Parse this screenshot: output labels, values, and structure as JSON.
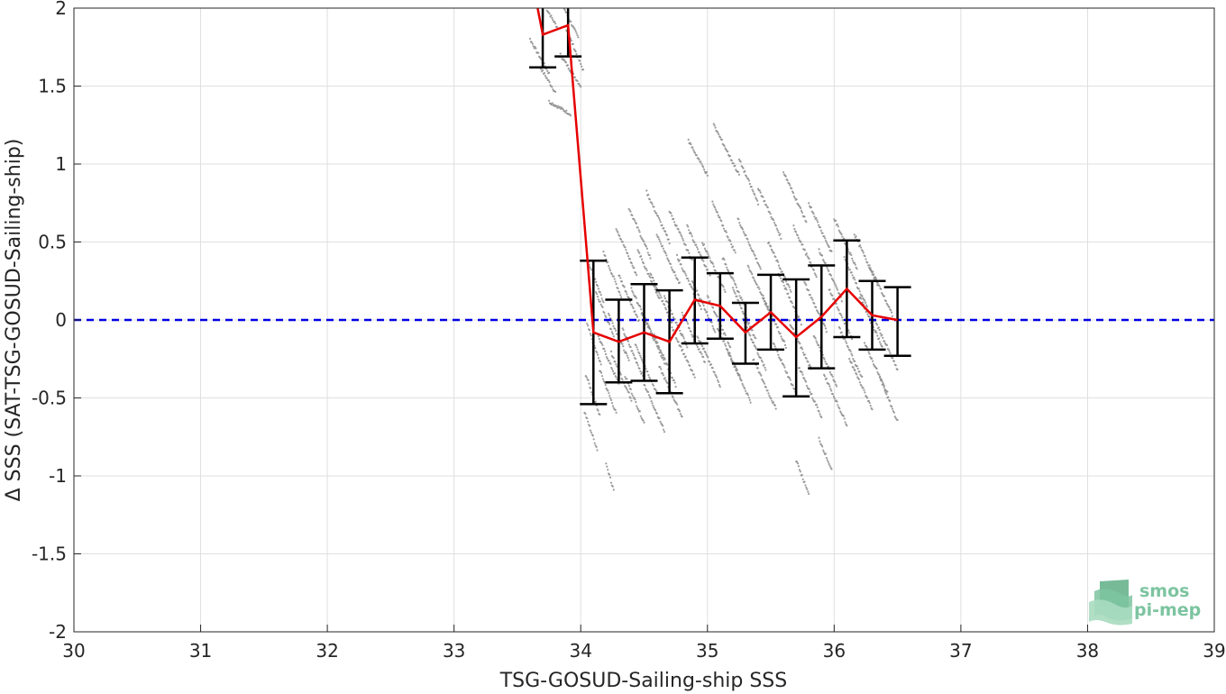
{
  "chart_data": {
    "type": "scatter",
    "xlabel": "TSG-GOSUD-Sailing-ship SSS",
    "ylabel": "Δ SSS (SAT-TSG-GOSUD-Sailing-ship)",
    "xlim": [
      30,
      39
    ],
    "ylim": [
      -2,
      2
    ],
    "xticks": [
      30,
      31,
      32,
      33,
      34,
      35,
      36,
      37,
      38,
      39
    ],
    "yticks": [
      -2,
      -1.5,
      -1,
      -0.5,
      0,
      0.5,
      1,
      1.5,
      2
    ],
    "grid": true,
    "reference_line": {
      "y": 0,
      "color": "#0000e6",
      "style": "dashed"
    },
    "mean_line": {
      "color": "#e60000",
      "x": [
        33.6,
        33.7,
        33.9,
        34.1,
        34.3,
        34.5,
        34.7,
        34.9,
        35.1,
        35.3,
        35.5,
        35.7,
        35.9,
        36.1,
        36.3,
        36.5
      ],
      "y": [
        2.25,
        1.83,
        1.89,
        -0.08,
        -0.14,
        -0.08,
        -0.14,
        0.13,
        0.09,
        -0.08,
        0.05,
        -0.11,
        0.02,
        0.2,
        0.03,
        0.0
      ]
    },
    "error_bars": {
      "color": "#000000",
      "x": [
        33.7,
        33.9,
        34.1,
        34.3,
        34.5,
        34.7,
        34.9,
        35.1,
        35.3,
        35.5,
        35.7,
        35.9,
        36.1,
        36.3,
        36.5
      ],
      "lower": [
        1.62,
        1.69,
        -0.54,
        -0.4,
        -0.39,
        -0.47,
        -0.15,
        -0.12,
        -0.28,
        -0.19,
        -0.49,
        -0.31,
        -0.11,
        -0.19,
        -0.23
      ],
      "upper": [
        2.05,
        2.08,
        0.38,
        0.13,
        0.23,
        0.19,
        0.4,
        0.3,
        0.11,
        0.29,
        0.26,
        0.35,
        0.51,
        0.25,
        0.21
      ]
    },
    "scatter_color": "#8c8c8c",
    "scatter_segments": [
      {
        "x0": 33.72,
        "x1": 33.82,
        "y0": 2.0,
        "dy": 0.01
      },
      {
        "x0": 33.6,
        "x1": 33.75,
        "y0": 1.75,
        "dy": 0.05
      },
      {
        "x0": 33.68,
        "x1": 33.8,
        "y0": 1.6,
        "dy": 0.02
      },
      {
        "x0": 33.85,
        "x1": 33.98,
        "y0": 1.98,
        "dy": 0.05
      },
      {
        "x0": 33.88,
        "x1": 34.02,
        "y0": 1.8,
        "dy": 0.08
      },
      {
        "x0": 33.84,
        "x1": 34.0,
        "y0": 1.66,
        "dy": 0.04
      },
      {
        "x0": 33.75,
        "x1": 33.92,
        "y0": 1.42,
        "dy": -0.02
      },
      {
        "x0": 34.06,
        "x1": 34.18,
        "y0": 0.3,
        "dy": 0.07
      },
      {
        "x0": 34.05,
        "x1": 34.16,
        "y0": -0.1,
        "dy": 0.07
      },
      {
        "x0": 34.04,
        "x1": 34.15,
        "y0": -0.42,
        "dy": 0.07
      },
      {
        "x0": 34.03,
        "x1": 34.13,
        "y0": -0.65,
        "dy": 0.06
      },
      {
        "x0": 34.12,
        "x1": 34.26,
        "y0": 0.1,
        "dy": 0.08
      },
      {
        "x0": 34.14,
        "x1": 34.3,
        "y0": -0.2,
        "dy": 0.09
      },
      {
        "x0": 34.15,
        "x1": 34.28,
        "y0": -0.4,
        "dy": 0.08
      },
      {
        "x0": 34.18,
        "x1": 34.32,
        "y0": 0.35,
        "dy": 0.08
      },
      {
        "x0": 34.22,
        "x1": 34.38,
        "y0": -0.05,
        "dy": 0.09
      },
      {
        "x0": 34.24,
        "x1": 34.4,
        "y0": -0.3,
        "dy": 0.09
      },
      {
        "x0": 34.28,
        "x1": 34.44,
        "y0": 0.5,
        "dy": 0.09
      },
      {
        "x0": 34.3,
        "x1": 34.46,
        "y0": 0.2,
        "dy": 0.09
      },
      {
        "x0": 34.33,
        "x1": 34.49,
        "y0": -0.15,
        "dy": 0.09
      },
      {
        "x0": 34.35,
        "x1": 34.5,
        "y0": -0.45,
        "dy": 0.09
      },
      {
        "x0": 34.38,
        "x1": 34.55,
        "y0": 0.62,
        "dy": 0.1
      },
      {
        "x0": 34.4,
        "x1": 34.58,
        "y0": 0.1,
        "dy": 0.1
      },
      {
        "x0": 34.43,
        "x1": 34.6,
        "y0": -0.25,
        "dy": 0.1
      },
      {
        "x0": 34.45,
        "x1": 34.62,
        "y0": 0.35,
        "dy": 0.1
      },
      {
        "x0": 34.48,
        "x1": 34.66,
        "y0": -0.05,
        "dy": 0.1
      },
      {
        "x0": 34.5,
        "x1": 34.66,
        "y0": -0.5,
        "dy": 0.09
      },
      {
        "x0": 34.52,
        "x1": 34.7,
        "y0": 0.72,
        "dy": 0.1
      },
      {
        "x0": 34.55,
        "x1": 34.72,
        "y0": 0.2,
        "dy": 0.1
      },
      {
        "x0": 34.58,
        "x1": 34.75,
        "y0": -0.2,
        "dy": 0.1
      },
      {
        "x0": 34.6,
        "x1": 34.78,
        "y0": 0.45,
        "dy": 0.1
      },
      {
        "x0": 34.62,
        "x1": 34.8,
        "y0": -0.4,
        "dy": 0.1
      },
      {
        "x0": 34.66,
        "x1": 34.84,
        "y0": 0.05,
        "dy": 0.1
      },
      {
        "x0": 34.7,
        "x1": 34.88,
        "y0": 0.6,
        "dy": 0.1
      },
      {
        "x0": 34.72,
        "x1": 34.9,
        "y0": -0.15,
        "dy": 0.1
      },
      {
        "x0": 34.76,
        "x1": 34.95,
        "y0": 0.3,
        "dy": 0.11
      },
      {
        "x0": 34.8,
        "x1": 34.98,
        "y0": -0.05,
        "dy": 0.1
      },
      {
        "x0": 34.84,
        "x1": 35.02,
        "y0": 0.5,
        "dy": 0.1
      },
      {
        "x0": 34.88,
        "x1": 35.06,
        "y0": 0.15,
        "dy": 0.1
      },
      {
        "x0": 34.92,
        "x1": 35.1,
        "y0": -0.2,
        "dy": 0.1
      },
      {
        "x0": 34.96,
        "x1": 35.14,
        "y0": 0.4,
        "dy": 0.1
      },
      {
        "x0": 35.0,
        "x1": 35.18,
        "y0": 0.05,
        "dy": 0.1
      },
      {
        "x0": 35.04,
        "x1": 35.22,
        "y0": 0.65,
        "dy": 0.1
      },
      {
        "x0": 35.08,
        "x1": 35.26,
        "y0": -0.15,
        "dy": 0.1
      },
      {
        "x0": 35.12,
        "x1": 35.3,
        "y0": 0.3,
        "dy": 0.1
      },
      {
        "x0": 35.16,
        "x1": 35.34,
        "y0": -0.3,
        "dy": 0.1
      },
      {
        "x0": 35.2,
        "x1": 35.38,
        "y0": 0.1,
        "dy": 0.1
      },
      {
        "x0": 35.24,
        "x1": 35.42,
        "y0": 0.55,
        "dy": 0.1
      },
      {
        "x0": 35.28,
        "x1": 35.46,
        "y0": -0.1,
        "dy": 0.1
      },
      {
        "x0": 35.32,
        "x1": 35.5,
        "y0": 0.25,
        "dy": 0.1
      },
      {
        "x0": 35.36,
        "x1": 35.54,
        "y0": -0.35,
        "dy": 0.1
      },
      {
        "x0": 35.4,
        "x1": 35.58,
        "y0": 0.75,
        "dy": 0.1
      },
      {
        "x0": 35.44,
        "x1": 35.62,
        "y0": 0.05,
        "dy": 0.1
      },
      {
        "x0": 35.48,
        "x1": 35.66,
        "y0": 0.4,
        "dy": 0.1
      },
      {
        "x0": 35.52,
        "x1": 35.7,
        "y0": -0.25,
        "dy": 0.1
      },
      {
        "x0": 35.56,
        "x1": 35.74,
        "y0": 0.2,
        "dy": 0.1
      },
      {
        "x0": 35.6,
        "x1": 35.78,
        "y0": 0.85,
        "dy": 0.1
      },
      {
        "x0": 35.64,
        "x1": 35.82,
        "y0": -0.1,
        "dy": 0.1
      },
      {
        "x0": 35.68,
        "x1": 35.86,
        "y0": 0.5,
        "dy": 0.1
      },
      {
        "x0": 35.72,
        "x1": 35.9,
        "y0": -0.4,
        "dy": 0.1
      },
      {
        "x0": 35.76,
        "x1": 35.94,
        "y0": 0.15,
        "dy": 0.1
      },
      {
        "x0": 35.8,
        "x1": 35.98,
        "y0": 0.65,
        "dy": 0.1
      },
      {
        "x0": 35.84,
        "x1": 36.02,
        "y0": -0.2,
        "dy": 0.1
      },
      {
        "x0": 35.88,
        "x1": 36.06,
        "y0": 0.35,
        "dy": 0.1
      },
      {
        "x0": 35.92,
        "x1": 36.1,
        "y0": -0.45,
        "dy": 0.1
      },
      {
        "x0": 35.96,
        "x1": 36.14,
        "y0": 0.1,
        "dy": 0.1
      },
      {
        "x0": 36.0,
        "x1": 36.18,
        "y0": 0.55,
        "dy": 0.1
      },
      {
        "x0": 36.04,
        "x1": 36.22,
        "y0": -0.15,
        "dy": 0.1
      },
      {
        "x0": 36.08,
        "x1": 36.26,
        "y0": 0.3,
        "dy": 0.1
      },
      {
        "x0": 36.12,
        "x1": 36.3,
        "y0": -0.35,
        "dy": 0.1
      },
      {
        "x0": 36.16,
        "x1": 36.34,
        "y0": 0.45,
        "dy": 0.1
      },
      {
        "x0": 36.2,
        "x1": 36.38,
        "y0": 0.05,
        "dy": 0.1
      },
      {
        "x0": 36.24,
        "x1": 36.42,
        "y0": -0.25,
        "dy": 0.1
      },
      {
        "x0": 36.28,
        "x1": 36.46,
        "y0": 0.25,
        "dy": 0.1
      },
      {
        "x0": 36.32,
        "x1": 36.5,
        "y0": -0.1,
        "dy": 0.1
      },
      {
        "x0": 36.36,
        "x1": 36.5,
        "y0": -0.45,
        "dy": 0.08
      },
      {
        "x0": 34.85,
        "x1": 35.0,
        "y0": 1.1,
        "dy": 0.05
      },
      {
        "x0": 35.05,
        "x1": 35.25,
        "y0": 1.15,
        "dy": 0.1
      },
      {
        "x0": 35.25,
        "x1": 35.4,
        "y0": 0.95,
        "dy": 0.08
      },
      {
        "x0": 35.7,
        "x1": 35.8,
        "y0": -0.95,
        "dy": 0.05
      },
      {
        "x0": 35.88,
        "x1": 35.98,
        "y0": -0.8,
        "dy": 0.04
      },
      {
        "x0": 34.2,
        "x1": 34.26,
        "y0": -0.95,
        "dy": 0.02
      }
    ]
  },
  "logo": {
    "line1": "smos",
    "line2": "pi-mep",
    "colors": [
      "#a8dcc0",
      "#7cc4a0",
      "#5fae86"
    ]
  }
}
